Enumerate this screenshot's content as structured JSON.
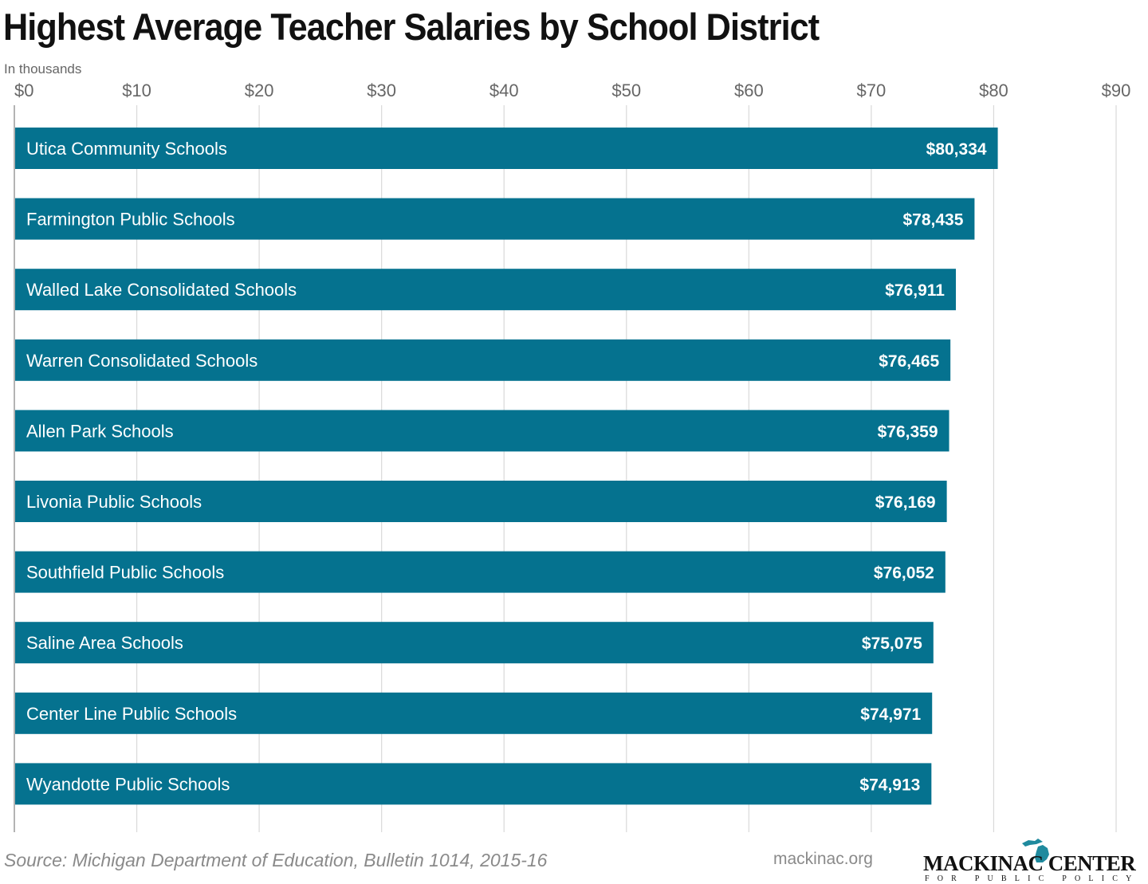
{
  "title": "Highest Average Teacher Salaries by School District",
  "unit_note": "In thousands",
  "source": "Source: Michigan Department of Education, Bulletin 1014, 2015-16",
  "site": "mackinac.org",
  "logo": {
    "name": "MACKINAC CENTER",
    "tagline": "FOR PUBLIC POLICY",
    "icon": "michigan-map-icon"
  },
  "colors": {
    "bar": "#05728f",
    "grid": "#d9d9d9",
    "axis_text": "#666666",
    "logo_accent": "#1f8a9e"
  },
  "chart_data": {
    "type": "bar",
    "orientation": "horizontal",
    "title": "Highest Average Teacher Salaries by School District",
    "xlabel": "In thousands",
    "xlim": [
      0,
      90
    ],
    "ticks": [
      "$0",
      "$10",
      "$20",
      "$30",
      "$40",
      "$50",
      "$60",
      "$70",
      "$80",
      "$90"
    ],
    "tick_values": [
      0,
      10,
      20,
      30,
      40,
      50,
      60,
      70,
      80,
      90
    ],
    "grid": true,
    "categories": [
      "Utica Community Schools",
      "Farmington Public Schools",
      "Walled Lake Consolidated Schools",
      "Warren Consolidated Schools",
      "Allen Park Schools",
      "Livonia Public Schools",
      "Southfield Public Schools",
      "Saline Area Schools",
      "Center Line Public Schools",
      "Wyandotte Public Schools"
    ],
    "values": [
      80.334,
      78.435,
      76.911,
      76.465,
      76.359,
      76.169,
      76.052,
      75.075,
      74.971,
      74.913
    ],
    "value_labels": [
      "$80,334",
      "$78,435",
      "$76,911",
      "$76,465",
      "$76,359",
      "$76,169",
      "$76,052",
      "$75,075",
      "$74,971",
      "$74,913"
    ]
  }
}
